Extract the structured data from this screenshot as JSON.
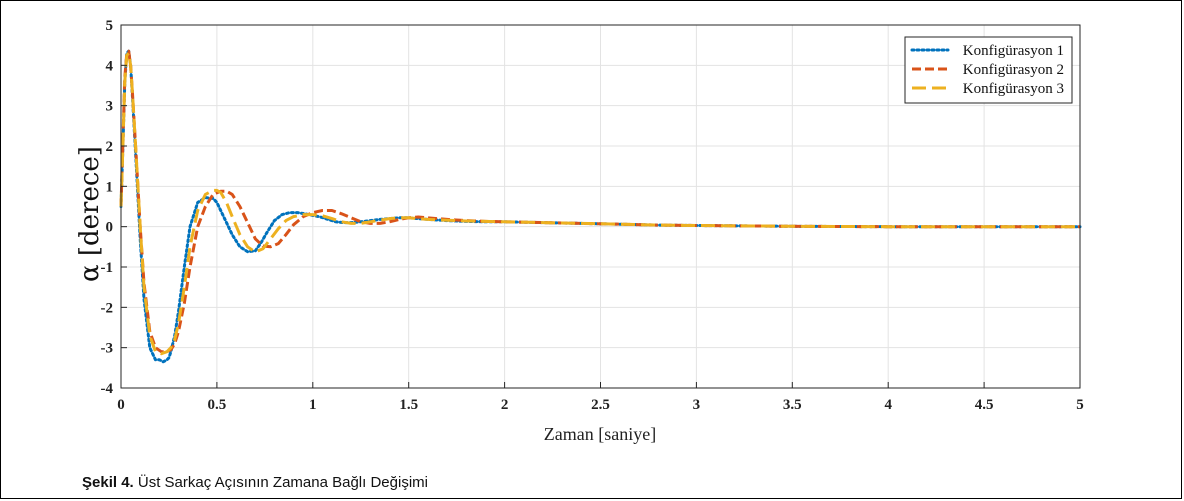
{
  "caption": {
    "label": "Şekil 4.",
    "text": " Üst Sarkaç Açısının Zamana Bağlı Değişimi"
  },
  "chart_data": {
    "type": "line",
    "title": "",
    "xlabel": "Zaman [saniye]",
    "ylabel": "α [derece]",
    "xlim": [
      0,
      5
    ],
    "ylim": [
      -4,
      5
    ],
    "xticks": [
      "0",
      "0.5",
      "1",
      "1.5",
      "2",
      "2.5",
      "3",
      "3.5",
      "4",
      "4.5",
      "5"
    ],
    "yticks": [
      "5",
      "4",
      "3",
      "2",
      "1",
      "0",
      "-1",
      "-2",
      "-3",
      "-4"
    ],
    "grid": true,
    "legend_position": "top-right",
    "series": [
      {
        "name": "Konfigürasyon 1",
        "color": "#0072BD",
        "style": "dotted",
        "x": [
          0,
          0.01,
          0.02,
          0.03,
          0.04,
          0.05,
          0.06,
          0.08,
          0.1,
          0.12,
          0.15,
          0.18,
          0.2,
          0.22,
          0.24,
          0.25,
          0.26,
          0.28,
          0.3,
          0.33,
          0.36,
          0.4,
          0.44,
          0.48,
          0.5,
          0.52,
          0.55,
          0.58,
          0.62,
          0.66,
          0.7,
          0.73,
          0.76,
          0.8,
          0.84,
          0.88,
          0.92,
          0.96,
          1.0,
          1.04,
          1.08,
          1.12,
          1.16,
          1.2,
          1.25,
          1.3,
          1.35,
          1.4,
          1.45,
          1.5,
          1.55,
          1.6,
          1.7,
          1.8,
          1.9,
          2.0,
          2.2,
          2.4,
          2.6,
          2.8,
          3.0,
          3.5,
          4.0,
          4.5,
          5.0
        ],
        "y": [
          0.5,
          2.0,
          3.6,
          4.3,
          4.35,
          4.0,
          3.2,
          1.5,
          -0.3,
          -1.8,
          -3.0,
          -3.3,
          -3.3,
          -3.35,
          -3.3,
          -3.25,
          -3.1,
          -2.7,
          -2.1,
          -1.0,
          0.0,
          0.6,
          0.72,
          0.7,
          0.6,
          0.4,
          0.1,
          -0.2,
          -0.5,
          -0.62,
          -0.6,
          -0.4,
          -0.15,
          0.15,
          0.3,
          0.35,
          0.35,
          0.32,
          0.28,
          0.24,
          0.18,
          0.12,
          0.1,
          0.1,
          0.12,
          0.15,
          0.18,
          0.2,
          0.22,
          0.22,
          0.2,
          0.18,
          0.15,
          0.13,
          0.12,
          0.12,
          0.1,
          0.08,
          0.06,
          0.04,
          0.03,
          0.01,
          0.0,
          0.0,
          0.0
        ]
      },
      {
        "name": "Konfigürasyon 2",
        "color": "#D95319",
        "style": "dashed",
        "x": [
          0,
          0.01,
          0.02,
          0.03,
          0.04,
          0.05,
          0.06,
          0.08,
          0.1,
          0.12,
          0.15,
          0.18,
          0.21,
          0.24,
          0.26,
          0.28,
          0.3,
          0.33,
          0.36,
          0.4,
          0.44,
          0.48,
          0.52,
          0.55,
          0.58,
          0.62,
          0.66,
          0.7,
          0.74,
          0.78,
          0.82,
          0.86,
          0.9,
          0.95,
          1.0,
          1.05,
          1.1,
          1.15,
          1.2,
          1.25,
          1.3,
          1.35,
          1.4,
          1.45,
          1.5,
          1.55,
          1.6,
          1.7,
          1.8,
          1.9,
          2.0,
          2.2,
          2.4,
          2.6,
          2.8,
          3.0,
          3.5,
          4.0,
          4.5,
          5.0
        ],
        "y": [
          0.5,
          2.1,
          3.7,
          4.3,
          4.35,
          4.0,
          3.3,
          1.7,
          0.0,
          -1.4,
          -2.6,
          -3.0,
          -3.1,
          -3.1,
          -3.05,
          -2.9,
          -2.6,
          -1.9,
          -1.0,
          0.0,
          0.5,
          0.8,
          0.88,
          0.88,
          0.8,
          0.5,
          0.1,
          -0.3,
          -0.48,
          -0.5,
          -0.42,
          -0.2,
          0.05,
          0.25,
          0.35,
          0.4,
          0.4,
          0.32,
          0.22,
          0.12,
          0.08,
          0.08,
          0.12,
          0.18,
          0.22,
          0.24,
          0.22,
          0.18,
          0.15,
          0.13,
          0.12,
          0.1,
          0.08,
          0.06,
          0.04,
          0.03,
          0.01,
          0.0,
          0.0,
          0.0
        ]
      },
      {
        "name": "Konfigürasyon 3",
        "color": "#EDB120",
        "style": "dashed-long",
        "x": [
          0,
          0.01,
          0.02,
          0.03,
          0.04,
          0.05,
          0.06,
          0.08,
          0.1,
          0.12,
          0.15,
          0.18,
          0.21,
          0.24,
          0.26,
          0.28,
          0.3,
          0.33,
          0.36,
          0.4,
          0.44,
          0.48,
          0.5,
          0.52,
          0.55,
          0.58,
          0.62,
          0.66,
          0.7,
          0.74,
          0.78,
          0.82,
          0.86,
          0.9,
          0.95,
          1.0,
          1.05,
          1.1,
          1.15,
          1.2,
          1.25,
          1.3,
          1.35,
          1.4,
          1.45,
          1.5,
          1.55,
          1.6,
          1.7,
          1.8,
          1.9,
          2.0,
          2.2,
          2.4,
          2.6,
          2.8,
          3.0,
          3.5,
          4.0,
          4.5,
          5.0
        ],
        "y": [
          0.5,
          2.0,
          3.6,
          4.25,
          4.3,
          4.0,
          3.3,
          1.7,
          0.0,
          -1.5,
          -2.7,
          -3.1,
          -3.15,
          -3.1,
          -3.0,
          -2.8,
          -2.4,
          -1.5,
          -0.5,
          0.4,
          0.8,
          0.9,
          0.9,
          0.85,
          0.6,
          0.25,
          -0.2,
          -0.5,
          -0.63,
          -0.55,
          -0.3,
          -0.05,
          0.15,
          0.25,
          0.3,
          0.3,
          0.27,
          0.2,
          0.12,
          0.08,
          0.08,
          0.12,
          0.16,
          0.2,
          0.22,
          0.22,
          0.2,
          0.18,
          0.16,
          0.14,
          0.13,
          0.12,
          0.1,
          0.08,
          0.06,
          0.04,
          0.03,
          0.01,
          0.0,
          0.0,
          0.0
        ]
      }
    ]
  }
}
